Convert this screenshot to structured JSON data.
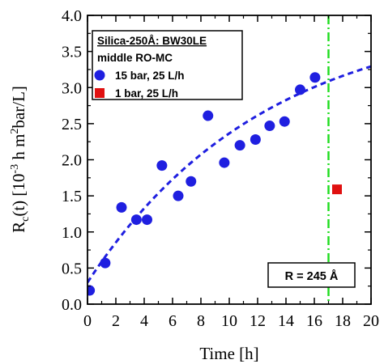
{
  "chart_data": {
    "type": "scatter",
    "xlabel": "Time [h]",
    "ylabel": "R",
    "ylabel_sub": "c",
    "ylabel_rest": "(t) [10",
    "ylabel_exp1": "-3",
    "ylabel_mid": " h m",
    "ylabel_exp2": "2",
    "ylabel_end": "bar/L]",
    "xlim": [
      0,
      20
    ],
    "ylim": [
      0,
      4.0
    ],
    "xticks": [
      0,
      2,
      4,
      6,
      8,
      10,
      12,
      14,
      16,
      18,
      20
    ],
    "yticks": [
      0.0,
      0.5,
      1.0,
      1.5,
      2.0,
      2.5,
      3.0,
      3.5,
      4.0
    ],
    "ytick_labels": [
      "0.0",
      "0.5",
      "1.0",
      "1.5",
      "2.0",
      "2.5",
      "3.0",
      "3.5",
      "4.0"
    ],
    "legend": {
      "title": "Silica-250Å: BW30LE",
      "subtitle": "middle RO-MC",
      "position": "top-left"
    },
    "series": [
      {
        "name": "15 bar, 25 L/h",
        "marker": "circle",
        "color": "#1f1fe0",
        "x": [
          0.15,
          1.25,
          2.4,
          3.45,
          4.2,
          5.25,
          6.4,
          7.3,
          8.5,
          9.65,
          10.75,
          11.85,
          12.85,
          13.9,
          15.0,
          16.05
        ],
        "y": [
          0.19,
          0.57,
          1.34,
          1.17,
          1.17,
          1.92,
          1.5,
          1.7,
          2.61,
          1.96,
          2.2,
          2.28,
          2.47,
          2.53,
          2.97,
          3.14
        ]
      },
      {
        "name": "1 bar, 25 L/h",
        "marker": "square",
        "color": "#e01010",
        "x": [
          17.6
        ],
        "y": [
          1.59
        ]
      }
    ],
    "fit_curve": {
      "style": "dashed",
      "color": "#1f1fe0",
      "form": "a - (a - b) * exp(-x / tau)",
      "a": 4.05,
      "b": 0.3,
      "tau": 12.5
    },
    "vline": {
      "x": 17.0,
      "style": "dash-dot",
      "color": "#22dd22",
      "label": "R = 245 Å"
    }
  }
}
